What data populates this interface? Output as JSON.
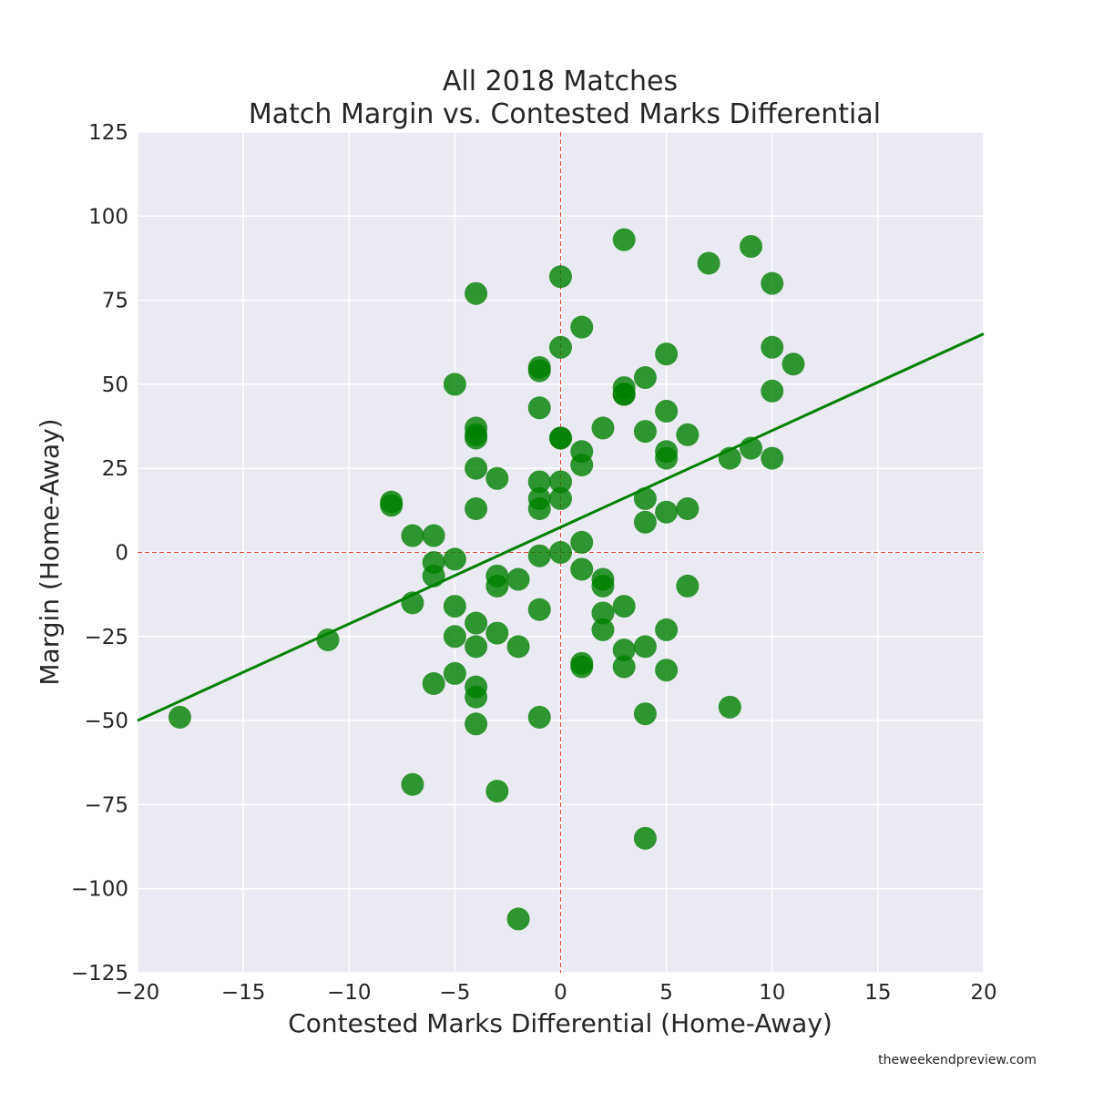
{
  "chart_data": {
    "type": "scatter",
    "title_lines": [
      "All 2018 Matches",
      "Match Margin vs. Contested Marks Differential"
    ],
    "xlabel": "Contested Marks Differential (Home-Away)",
    "ylabel": "Margin (Home-Away)",
    "xlim": [
      -20,
      20
    ],
    "ylim": [
      -125,
      125
    ],
    "xticks": [
      -20,
      -15,
      -10,
      -5,
      0,
      5,
      10,
      15,
      20
    ],
    "yticks": [
      -125,
      -100,
      -75,
      -50,
      -25,
      0,
      25,
      50,
      75,
      100,
      125
    ],
    "xtick_labels": [
      "−20",
      "−15",
      "−10",
      "−5",
      "0",
      "5",
      "10",
      "15",
      "20"
    ],
    "ytick_labels": [
      "−125",
      "−100",
      "−75",
      "−50",
      "−25",
      "0",
      "25",
      "50",
      "75",
      "100",
      "125"
    ],
    "grid": true,
    "point_color": "#008000",
    "line_color": "#008000",
    "reference_line_color": "#e8453c",
    "background_color": "#eaeaf2",
    "reference_lines": {
      "x": 0,
      "y": 0
    },
    "trend_line": {
      "x": [
        -20,
        20
      ],
      "y": [
        -50,
        65
      ]
    },
    "points": [
      {
        "x": -18,
        "y": -49
      },
      {
        "x": -11,
        "y": -26
      },
      {
        "x": -8,
        "y": 15
      },
      {
        "x": -8,
        "y": 14
      },
      {
        "x": -7,
        "y": 5
      },
      {
        "x": -7,
        "y": -15
      },
      {
        "x": -7,
        "y": -69
      },
      {
        "x": -6,
        "y": 5
      },
      {
        "x": -6,
        "y": -3
      },
      {
        "x": -6,
        "y": -7
      },
      {
        "x": -6,
        "y": -39
      },
      {
        "x": -5,
        "y": 50
      },
      {
        "x": -5,
        "y": -2
      },
      {
        "x": -5,
        "y": -16
      },
      {
        "x": -5,
        "y": -25
      },
      {
        "x": -5,
        "y": -36
      },
      {
        "x": -4,
        "y": 77
      },
      {
        "x": -4,
        "y": 37
      },
      {
        "x": -4,
        "y": 35
      },
      {
        "x": -4,
        "y": 34
      },
      {
        "x": -4,
        "y": 25
      },
      {
        "x": -4,
        "y": 13
      },
      {
        "x": -4,
        "y": -21
      },
      {
        "x": -4,
        "y": -28
      },
      {
        "x": -4,
        "y": -40
      },
      {
        "x": -4,
        "y": -43
      },
      {
        "x": -4,
        "y": -51
      },
      {
        "x": -3,
        "y": 22
      },
      {
        "x": -3,
        "y": -7
      },
      {
        "x": -3,
        "y": -10
      },
      {
        "x": -3,
        "y": -24
      },
      {
        "x": -3,
        "y": -71
      },
      {
        "x": -2,
        "y": -8
      },
      {
        "x": -2,
        "y": -28
      },
      {
        "x": -2,
        "y": -109
      },
      {
        "x": -1,
        "y": 55
      },
      {
        "x": -1,
        "y": 54
      },
      {
        "x": -1,
        "y": 43
      },
      {
        "x": -1,
        "y": 21
      },
      {
        "x": -1,
        "y": 16
      },
      {
        "x": -1,
        "y": 13
      },
      {
        "x": -1,
        "y": -1
      },
      {
        "x": -1,
        "y": -17
      },
      {
        "x": -1,
        "y": -49
      },
      {
        "x": 0,
        "y": 82
      },
      {
        "x": 0,
        "y": 61
      },
      {
        "x": 0,
        "y": 34
      },
      {
        "x": 0,
        "y": 34
      },
      {
        "x": 0,
        "y": 21
      },
      {
        "x": 0,
        "y": 16
      },
      {
        "x": 0,
        "y": 0
      },
      {
        "x": 1,
        "y": 67
      },
      {
        "x": 1,
        "y": 30
      },
      {
        "x": 1,
        "y": 26
      },
      {
        "x": 1,
        "y": 3
      },
      {
        "x": 1,
        "y": -5
      },
      {
        "x": 1,
        "y": -33
      },
      {
        "x": 1,
        "y": -34
      },
      {
        "x": 2,
        "y": 37
      },
      {
        "x": 2,
        "y": -8
      },
      {
        "x": 2,
        "y": -10
      },
      {
        "x": 2,
        "y": -18
      },
      {
        "x": 2,
        "y": -23
      },
      {
        "x": 3,
        "y": 93
      },
      {
        "x": 3,
        "y": 49
      },
      {
        "x": 3,
        "y": 47
      },
      {
        "x": 3,
        "y": 47
      },
      {
        "x": 3,
        "y": -16
      },
      {
        "x": 3,
        "y": -29
      },
      {
        "x": 3,
        "y": -34
      },
      {
        "x": 4,
        "y": 52
      },
      {
        "x": 4,
        "y": 36
      },
      {
        "x": 4,
        "y": 16
      },
      {
        "x": 4,
        "y": 9
      },
      {
        "x": 4,
        "y": -28
      },
      {
        "x": 4,
        "y": -48
      },
      {
        "x": 4,
        "y": -85
      },
      {
        "x": 5,
        "y": 59
      },
      {
        "x": 5,
        "y": 42
      },
      {
        "x": 5,
        "y": 30
      },
      {
        "x": 5,
        "y": 28
      },
      {
        "x": 5,
        "y": 12
      },
      {
        "x": 5,
        "y": -23
      },
      {
        "x": 5,
        "y": -35
      },
      {
        "x": 6,
        "y": 35
      },
      {
        "x": 6,
        "y": 13
      },
      {
        "x": 6,
        "y": -10
      },
      {
        "x": 7,
        "y": 86
      },
      {
        "x": 8,
        "y": 28
      },
      {
        "x": 8,
        "y": -46
      },
      {
        "x": 9,
        "y": 91
      },
      {
        "x": 9,
        "y": 31
      },
      {
        "x": 10,
        "y": 80
      },
      {
        "x": 10,
        "y": 61
      },
      {
        "x": 10,
        "y": 48
      },
      {
        "x": 10,
        "y": 28
      },
      {
        "x": 11,
        "y": 56
      }
    ]
  },
  "footer": {
    "watermark": "theweekendpreview.com"
  }
}
